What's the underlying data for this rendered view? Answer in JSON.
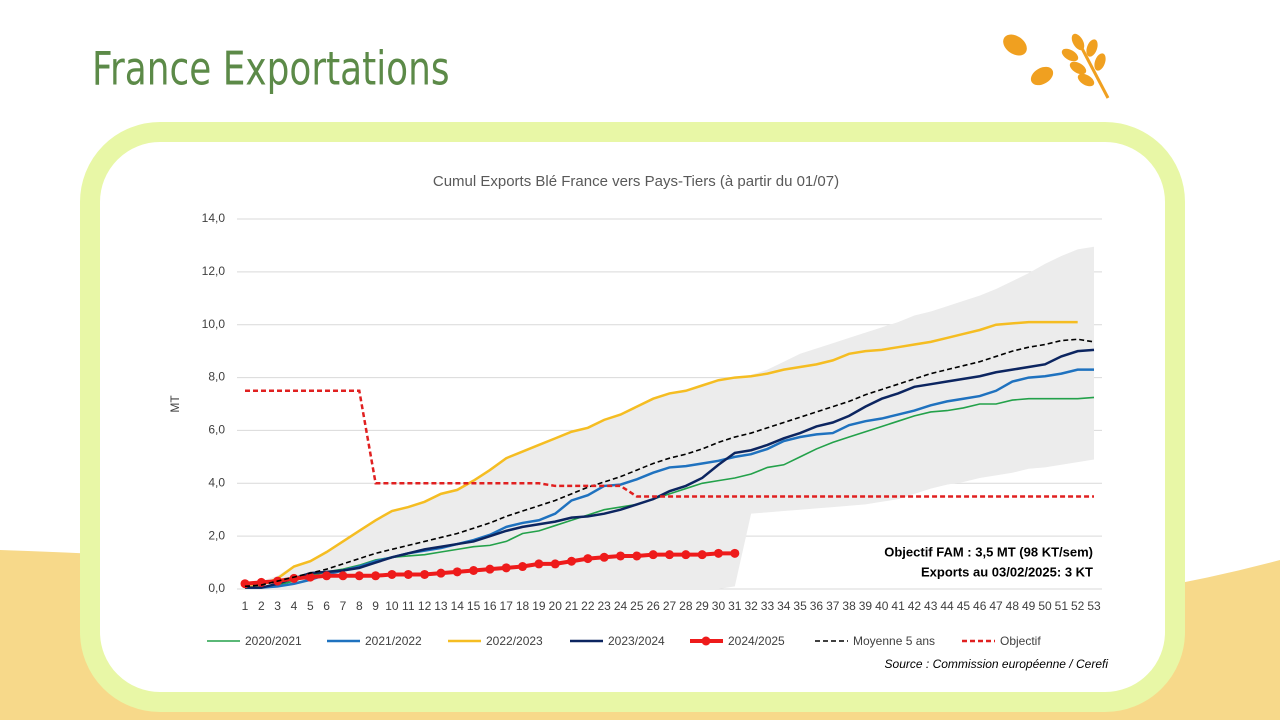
{
  "slide": {
    "title": "France Exportations"
  },
  "chart_data": {
    "type": "line",
    "title": "Cumul Exports Blé France vers Pays-Tiers (à partir du 01/07)",
    "y_label": "MT",
    "categories": [
      "1",
      "2",
      "3",
      "4",
      "5",
      "6",
      "7",
      "8",
      "9",
      "10",
      "11",
      "12",
      "13",
      "14",
      "15",
      "16",
      "17",
      "18",
      "19",
      "20",
      "21",
      "22",
      "23",
      "24",
      "25",
      "26",
      "27",
      "28",
      "29",
      "30",
      "31",
      "32",
      "33",
      "34",
      "35",
      "36",
      "37",
      "38",
      "39",
      "40",
      "41",
      "42",
      "43",
      "44",
      "45",
      "46",
      "47",
      "48",
      "49",
      "50",
      "51",
      "52",
      "53"
    ],
    "ylim": [
      0,
      14
    ],
    "yticks": [
      {
        "value": 0,
        "label": "0,0"
      },
      {
        "value": 2,
        "label": "2,0"
      },
      {
        "value": 4,
        "label": "4,0"
      },
      {
        "value": 6,
        "label": "6,0"
      },
      {
        "value": 8,
        "label": "8,0"
      },
      {
        "value": 10,
        "label": "10,0"
      },
      {
        "value": 12,
        "label": "12,0"
      },
      {
        "value": 14,
        "label": "14,0"
      }
    ],
    "grid": true,
    "range": {
      "color": "#ececec",
      "upper": [
        0.2,
        0.3,
        0.5,
        0.9,
        1.1,
        1.4,
        1.8,
        2.2,
        2.6,
        2.95,
        3.1,
        3.3,
        3.6,
        3.8,
        4.1,
        4.5,
        4.95,
        5.2,
        5.45,
        5.7,
        5.95,
        6.1,
        6.4,
        6.6,
        6.9,
        7.2,
        7.4,
        7.5,
        7.7,
        7.9,
        8.0,
        8.1,
        8.3,
        8.6,
        8.9,
        9.1,
        9.3,
        9.5,
        9.7,
        9.9,
        10.1,
        10.35,
        10.5,
        10.7,
        10.9,
        11.1,
        11.35,
        11.65,
        11.95,
        12.3,
        12.6,
        12.85,
        12.95
      ],
      "lower": [
        0,
        0,
        0,
        0,
        0,
        0,
        0,
        0,
        0,
        0,
        0,
        0,
        0,
        0,
        0,
        0,
        0,
        0,
        0,
        0,
        0,
        0,
        0,
        0,
        0,
        0,
        0,
        0,
        0,
        0,
        0.1,
        2.85,
        2.9,
        2.95,
        3.0,
        3.05,
        3.1,
        3.15,
        3.2,
        3.3,
        3.4,
        3.6,
        3.8,
        3.95,
        4.05,
        4.2,
        4.3,
        4.4,
        4.55,
        4.6,
        4.7,
        4.8,
        4.9
      ]
    },
    "series": [
      {
        "name": "2020/2021",
        "color": "#23a14a",
        "style": "solid",
        "width": 1.6,
        "values": [
          0.05,
          0.05,
          0.15,
          0.3,
          0.5,
          0.65,
          0.75,
          0.9,
          1.1,
          1.2,
          1.25,
          1.3,
          1.4,
          1.5,
          1.6,
          1.65,
          1.8,
          2.1,
          2.2,
          2.4,
          2.6,
          2.8,
          3.0,
          3.1,
          3.2,
          3.4,
          3.6,
          3.8,
          4.0,
          4.1,
          4.2,
          4.35,
          4.6,
          4.7,
          5.0,
          5.3,
          5.55,
          5.75,
          5.95,
          6.15,
          6.35,
          6.55,
          6.7,
          6.75,
          6.85,
          7.0,
          7.0,
          7.15,
          7.2,
          7.2,
          7.2,
          7.2,
          7.25
        ]
      },
      {
        "name": "2021/2022",
        "color": "#1f72bf",
        "style": "solid",
        "width": 2.5,
        "values": [
          0.05,
          0.05,
          0.1,
          0.2,
          0.35,
          0.55,
          0.7,
          0.85,
          1.05,
          1.2,
          1.35,
          1.45,
          1.55,
          1.7,
          1.85,
          2.05,
          2.35,
          2.5,
          2.6,
          2.85,
          3.35,
          3.55,
          3.9,
          3.95,
          4.15,
          4.4,
          4.6,
          4.65,
          4.75,
          4.85,
          5.0,
          5.1,
          5.3,
          5.6,
          5.75,
          5.85,
          5.9,
          6.2,
          6.35,
          6.45,
          6.6,
          6.75,
          6.95,
          7.1,
          7.2,
          7.3,
          7.5,
          7.85,
          8.0,
          8.05,
          8.15,
          8.3,
          8.3
        ]
      },
      {
        "name": "2022/2023",
        "color": "#f5bd22",
        "style": "solid",
        "width": 2.5,
        "values": [
          0.05,
          0.15,
          0.4,
          0.85,
          1.05,
          1.4,
          1.8,
          2.2,
          2.6,
          2.95,
          3.1,
          3.3,
          3.6,
          3.75,
          4.1,
          4.5,
          4.95,
          5.2,
          5.45,
          5.7,
          5.95,
          6.1,
          6.4,
          6.6,
          6.9,
          7.2,
          7.4,
          7.5,
          7.7,
          7.9,
          8.0,
          8.05,
          8.15,
          8.3,
          8.4,
          8.5,
          8.65,
          8.9,
          9.0,
          9.05,
          9.15,
          9.25,
          9.35,
          9.5,
          9.65,
          9.8,
          10.0,
          10.05,
          10.1,
          10.1,
          10.1,
          10.1,
          null
        ]
      },
      {
        "name": "2023/2024",
        "color": "#0c2560",
        "style": "solid",
        "width": 2.5,
        "values": [
          0.05,
          0.05,
          0.2,
          0.4,
          0.6,
          0.65,
          0.7,
          0.8,
          1.0,
          1.2,
          1.35,
          1.5,
          1.6,
          1.7,
          1.8,
          2.0,
          2.2,
          2.35,
          2.45,
          2.55,
          2.7,
          2.75,
          2.85,
          3.0,
          3.2,
          3.4,
          3.7,
          3.9,
          4.2,
          4.7,
          5.15,
          5.25,
          5.45,
          5.7,
          5.9,
          6.15,
          6.3,
          6.55,
          6.9,
          7.2,
          7.4,
          7.65,
          7.75,
          7.85,
          7.95,
          8.05,
          8.2,
          8.3,
          8.4,
          8.5,
          8.8,
          9.0,
          9.05
        ]
      },
      {
        "name": "2024/2025",
        "color": "#ee1b1b",
        "style": "solid",
        "width": 4,
        "markers": true,
        "values": [
          0.2,
          0.25,
          0.3,
          0.4,
          0.45,
          0.5,
          0.5,
          0.5,
          0.5,
          0.55,
          0.55,
          0.55,
          0.6,
          0.65,
          0.7,
          0.75,
          0.8,
          0.85,
          0.95,
          0.95,
          1.05,
          1.15,
          1.2,
          1.25,
          1.25,
          1.3,
          1.3,
          1.3,
          1.3,
          1.35,
          1.35,
          null,
          null,
          null,
          null,
          null,
          null,
          null,
          null,
          null,
          null,
          null,
          null,
          null,
          null,
          null,
          null,
          null,
          null,
          null,
          null,
          null,
          null
        ]
      },
      {
        "name": "Moyenne 5 ans",
        "color": "#000000",
        "style": "dashed",
        "width": 1.6,
        "values": [
          0.1,
          0.15,
          0.3,
          0.45,
          0.6,
          0.75,
          0.95,
          1.15,
          1.35,
          1.5,
          1.65,
          1.8,
          1.95,
          2.1,
          2.3,
          2.5,
          2.75,
          2.95,
          3.15,
          3.35,
          3.6,
          3.85,
          4.05,
          4.25,
          4.5,
          4.75,
          4.95,
          5.1,
          5.3,
          5.55,
          5.75,
          5.9,
          6.1,
          6.3,
          6.5,
          6.7,
          6.9,
          7.1,
          7.35,
          7.55,
          7.75,
          7.95,
          8.15,
          8.3,
          8.45,
          8.6,
          8.8,
          9.0,
          9.15,
          9.25,
          9.4,
          9.45,
          9.35
        ]
      },
      {
        "name": "Objectif",
        "color": "#e02020",
        "style": "dashed",
        "width": 2.5,
        "values": [
          7.5,
          7.5,
          7.5,
          7.5,
          7.5,
          7.5,
          7.5,
          7.5,
          4.0,
          4.0,
          4.0,
          4.0,
          4.0,
          4.0,
          4.0,
          4.0,
          4.0,
          4.0,
          4.0,
          3.9,
          3.9,
          3.9,
          3.9,
          3.9,
          3.5,
          3.5,
          3.5,
          3.5,
          3.5,
          3.5,
          3.5,
          3.5,
          3.5,
          3.5,
          3.5,
          3.5,
          3.5,
          3.5,
          3.5,
          3.5,
          3.5,
          3.5,
          3.5,
          3.5,
          3.5,
          3.5,
          3.5,
          3.5,
          3.5,
          3.5,
          3.5,
          3.5,
          3.5
        ]
      }
    ],
    "annotations": [
      "Objectif FAM : 3,5 MT  (98 KT/sem)",
      "Exports au 03/02/2025: 3 KT"
    ],
    "source": "Source : Commission européenne / Cerefi"
  }
}
